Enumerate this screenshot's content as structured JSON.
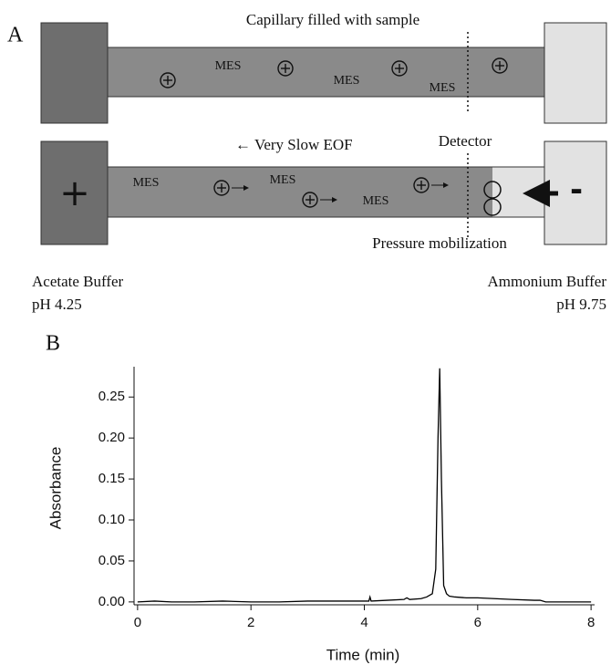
{
  "panel_a": {
    "label": "A",
    "top_caption": "Capillary filled with sample",
    "top_ion_labels": [
      "MES",
      "MES",
      "MES"
    ],
    "eof_label": "← Very Slow EOF",
    "detector_label": "Detector",
    "pressure_label": "Pressure mobilization",
    "bottom_ion_labels": [
      "MES",
      "MES",
      "MES"
    ],
    "anode_sign": "+",
    "cathode_sign": "-",
    "left_buffer": [
      "Acetate Buffer",
      "pH 4.25"
    ],
    "right_buffer": [
      "Ammonium Buffer",
      "pH 9.75"
    ]
  },
  "chart_data": {
    "type": "line",
    "panel_label": "B",
    "xlabel": "Time (min)",
    "ylabel": "Absorbance",
    "color": "#000000",
    "x": [
      0,
      0.3,
      0.6,
      1.0,
      1.5,
      2.0,
      2.5,
      3.0,
      3.5,
      4.0,
      4.08,
      4.1,
      4.12,
      4.4,
      4.7,
      4.75,
      4.8,
      5.0,
      5.1,
      5.2,
      5.26,
      5.3,
      5.33,
      5.36,
      5.4,
      5.45,
      5.5,
      5.6,
      5.8,
      6.0,
      6.3,
      6.6,
      7.0,
      7.1,
      7.2,
      7.5,
      8.0
    ],
    "values": [
      0.0,
      0.001,
      0.0,
      0.0,
      0.001,
      0.0,
      0.0,
      0.001,
      0.001,
      0.001,
      0.001,
      0.006,
      0.001,
      0.002,
      0.003,
      0.005,
      0.003,
      0.004,
      0.006,
      0.01,
      0.04,
      0.2,
      0.285,
      0.15,
      0.02,
      0.01,
      0.007,
      0.006,
      0.005,
      0.005,
      0.004,
      0.003,
      0.002,
      0.002,
      0.0,
      0.0,
      0.0
    ],
    "xlim": [
      -0.03,
      8.03
    ],
    "ylim": [
      -0.0035,
      0.287
    ],
    "xticks": [
      0,
      2,
      4,
      6,
      8
    ],
    "yticks": [
      {
        "value": 0,
        "label": "0.00"
      },
      0.05,
      {
        "value": 0.1,
        "label": "0.10"
      },
      0.15,
      {
        "value": 0.2,
        "label": "0.20"
      },
      0.25
    ]
  }
}
